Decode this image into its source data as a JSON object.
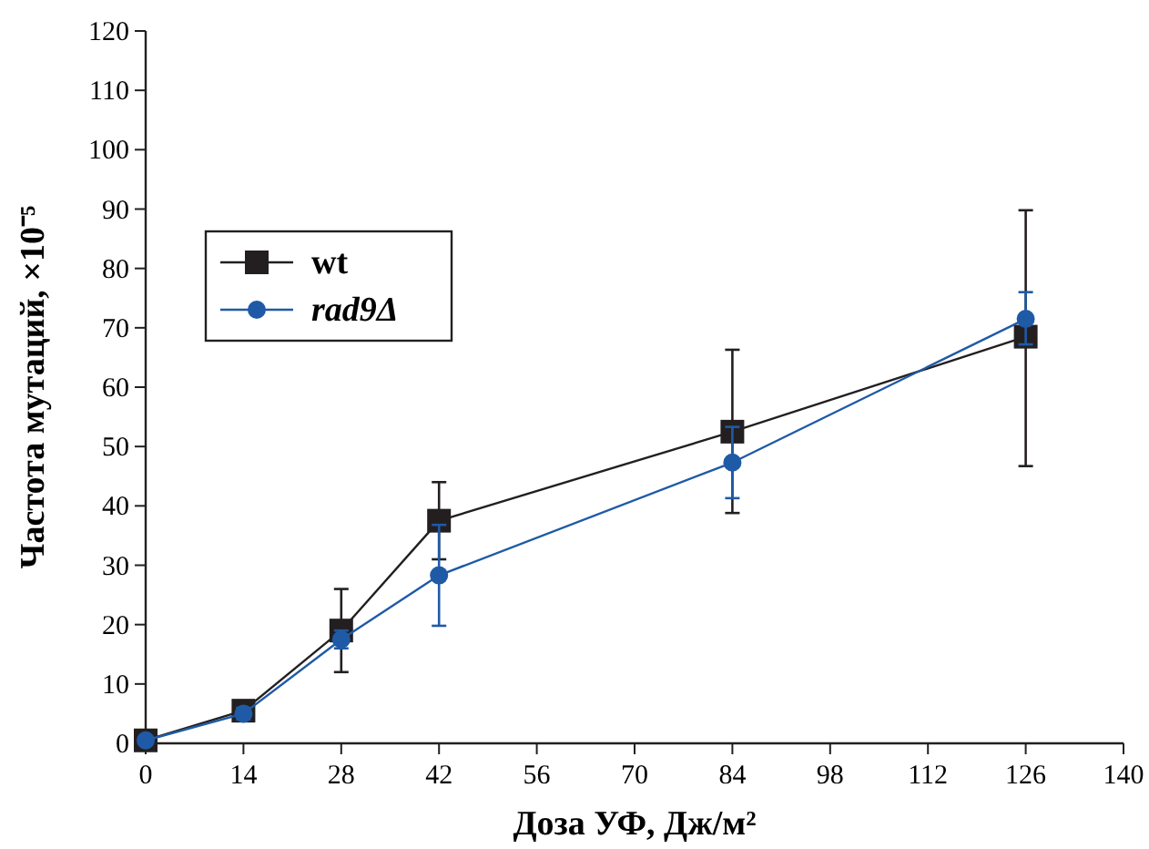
{
  "chart_data": {
    "type": "line",
    "xlabel": "Доза УФ, Дж/м²",
    "ylabel": "Частота мутаций, ×10⁻⁵",
    "x": [
      0,
      14,
      28,
      42,
      84,
      126
    ],
    "series": [
      {
        "name": "wt",
        "color": "#231f20",
        "marker": "square",
        "values": [
          0.5,
          5.5,
          19,
          37.5,
          52.5,
          68.5
        ],
        "errors": [
          null,
          1,
          [
            12,
            26
          ],
          6.5,
          [
            38.8,
            66.3
          ],
          [
            46.7,
            89.8
          ]
        ]
      },
      {
        "name": "rad9Δ",
        "color": "#1f5aa6",
        "marker": "circle",
        "values": [
          0.5,
          5,
          17.5,
          28.3,
          47.3,
          71.5
        ],
        "errors": [
          null,
          1,
          1.5,
          8.5,
          6,
          [
            67.2,
            76
          ]
        ]
      }
    ],
    "xlim": [
      0,
      140
    ],
    "xticks": [
      0,
      14,
      28,
      42,
      56,
      70,
      84,
      98,
      112,
      126,
      140
    ],
    "ylim": [
      0,
      120
    ],
    "yticks": [
      0,
      10,
      20,
      30,
      40,
      50,
      60,
      70,
      80,
      90,
      100,
      110,
      120
    ],
    "grid": false,
    "legend": "top left",
    "line_style": "solid"
  }
}
